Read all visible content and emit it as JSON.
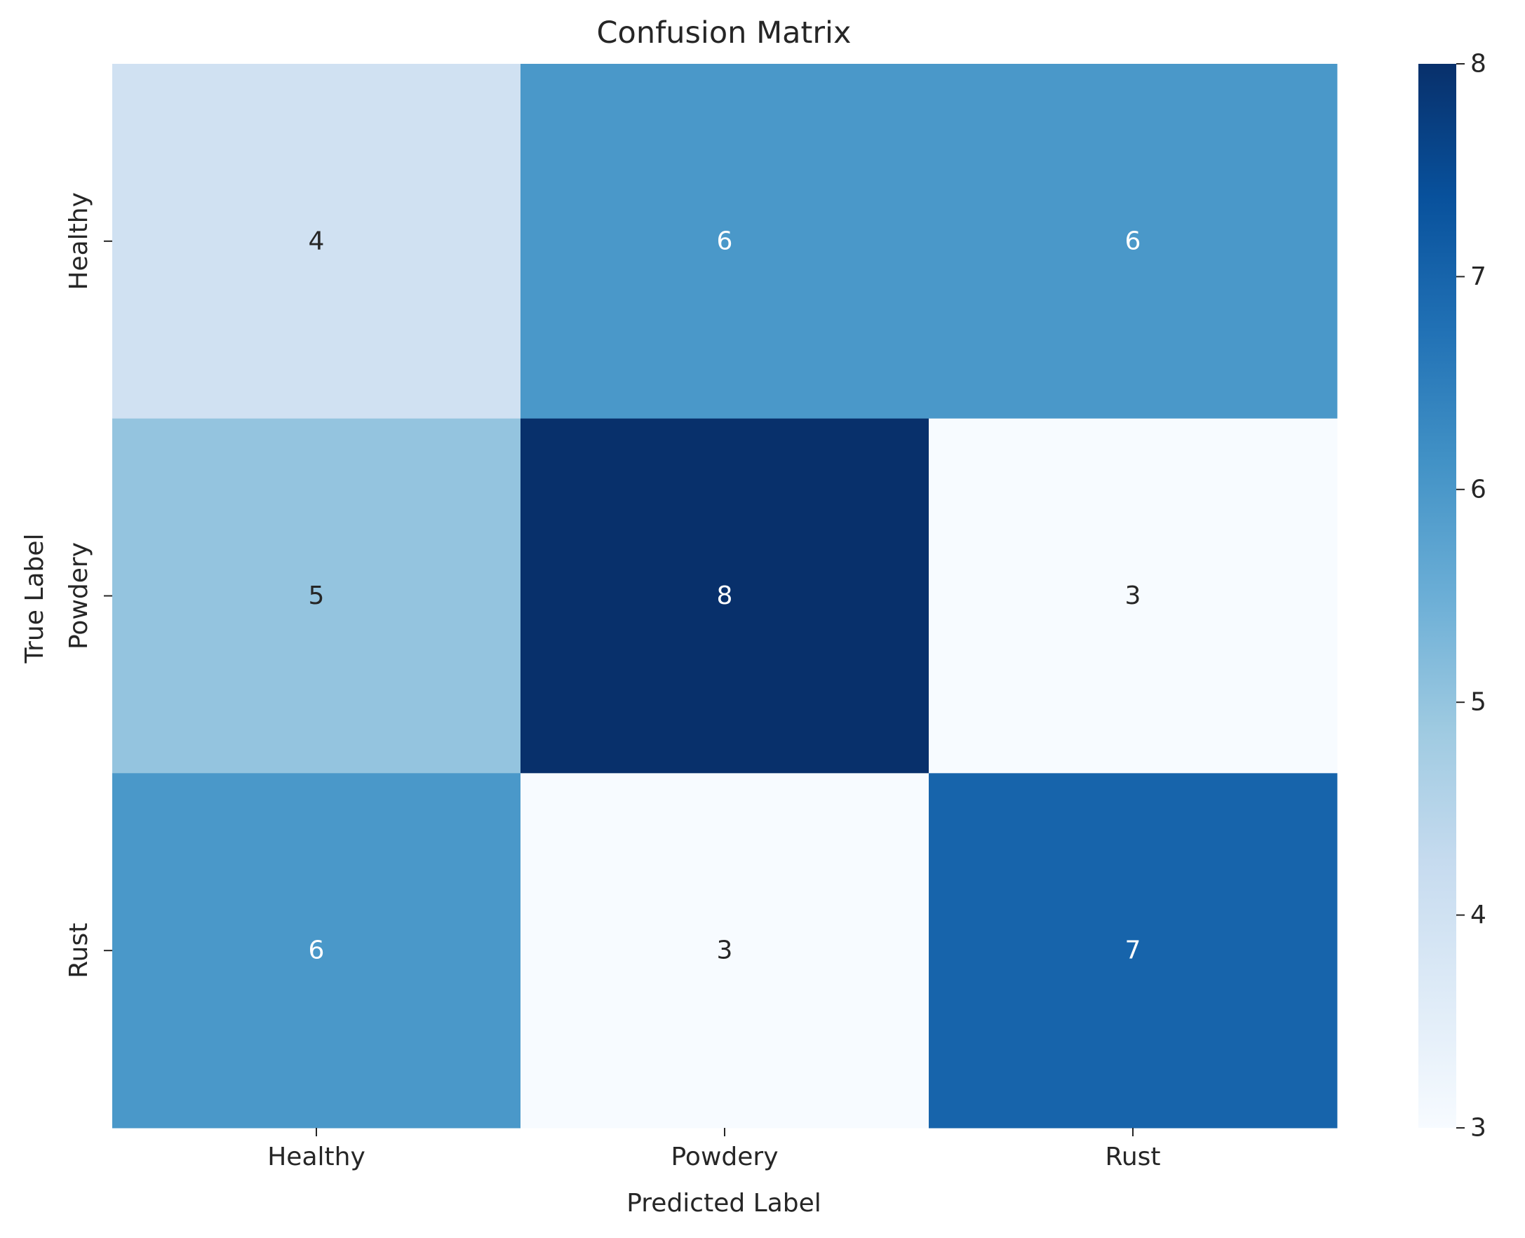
{
  "chart_data": {
    "type": "heatmap",
    "title": "Confusion Matrix",
    "xlabel": "Predicted Label",
    "ylabel": "True Label",
    "x_categories": [
      "Healthy",
      "Powdery",
      "Rust"
    ],
    "y_categories": [
      "Healthy",
      "Powdery",
      "Rust"
    ],
    "values": [
      [
        4,
        6,
        6
      ],
      [
        5,
        8,
        3
      ],
      [
        6,
        3,
        7
      ]
    ],
    "colorbar": {
      "min": 3,
      "max": 8,
      "ticks": [
        3,
        4,
        5,
        6,
        7,
        8
      ],
      "colormap": "Blues"
    }
  }
}
